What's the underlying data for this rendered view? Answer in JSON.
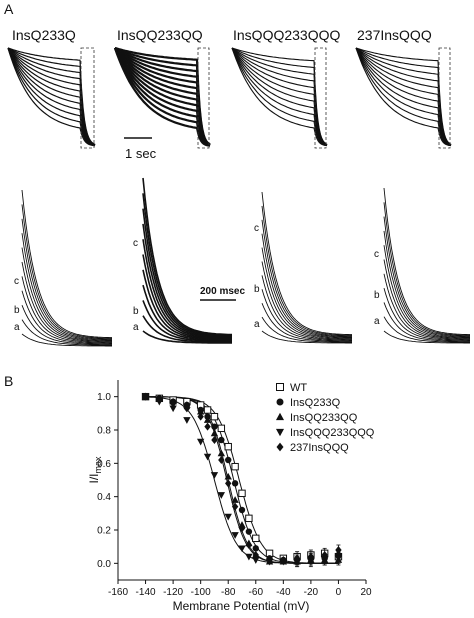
{
  "figure": {
    "panel_a_label": "A",
    "panel_b_label": "B",
    "panels_a": [
      {
        "title": "InsQ233Q"
      },
      {
        "title": "InsQQ233QQ"
      },
      {
        "title": "InsQQQ233QQQ"
      },
      {
        "title": "237InsQQQ"
      }
    ],
    "scalebar_top": "1 sec",
    "scalebar_bottom": "200 msec",
    "trace_labels": [
      "c",
      "b",
      "a"
    ]
  },
  "chart_data": {
    "type": "scatter",
    "xlabel": "Membrane Potential (mV)",
    "ylabel_main": "I/I",
    "ylabel_sub": "max",
    "xlim": [
      -160,
      20
    ],
    "ylim": [
      -0.1,
      1.1
    ],
    "xticks": [
      -160,
      -140,
      -120,
      -100,
      -80,
      -60,
      -40,
      -20,
      0,
      20
    ],
    "yticks": [
      0.0,
      0.2,
      0.4,
      0.6,
      0.8,
      1.0
    ],
    "xtick_labels": [
      "-160",
      "-140",
      "-120",
      "-100",
      "-80",
      "-60",
      "-40",
      "-20",
      "0",
      "20"
    ],
    "ytick_labels": [
      "0.0",
      "0.2",
      "0.4",
      "0.6",
      "0.8",
      "1.0"
    ],
    "legend_position": "top-right",
    "series": [
      {
        "name": "WT",
        "marker": "square-open",
        "x": [
          -140,
          -130,
          -120,
          -110,
          -100,
          -95,
          -90,
          -85,
          -80,
          -75,
          -70,
          -65,
          -60,
          -50,
          -40,
          -30,
          -20,
          -10,
          0
        ],
        "y": [
          1.0,
          0.99,
          0.98,
          0.97,
          0.95,
          0.92,
          0.88,
          0.81,
          0.7,
          0.58,
          0.42,
          0.27,
          0.15,
          0.06,
          0.03,
          0.04,
          0.05,
          0.06,
          0.04
        ]
      },
      {
        "name": "InsQ233Q",
        "marker": "circle-filled",
        "x": [
          -140,
          -130,
          -120,
          -110,
          -100,
          -95,
          -90,
          -85,
          -80,
          -75,
          -70,
          -65,
          -60,
          -50,
          -40,
          -30,
          -20,
          -10,
          0
        ],
        "y": [
          1.0,
          0.99,
          0.97,
          0.95,
          0.92,
          0.88,
          0.82,
          0.74,
          0.62,
          0.48,
          0.32,
          0.19,
          0.09,
          0.03,
          0.02,
          0.02,
          0.03,
          0.03,
          0.05
        ]
      },
      {
        "name": "InsQQ233QQ",
        "marker": "triangle-up",
        "x": [
          -140,
          -130,
          -120,
          -110,
          -100,
          -95,
          -90,
          -85,
          -80,
          -75,
          -70,
          -65,
          -60,
          -50,
          -40,
          -30,
          -20,
          -10,
          0
        ],
        "y": [
          1.0,
          0.99,
          0.97,
          0.95,
          0.91,
          0.86,
          0.78,
          0.66,
          0.52,
          0.38,
          0.23,
          0.12,
          0.05,
          0.01,
          0.01,
          0.01,
          0.02,
          0.02,
          0.02
        ]
      },
      {
        "name": "InsQQQ233QQQ",
        "marker": "triangle-down",
        "x": [
          -140,
          -130,
          -120,
          -110,
          -100,
          -95,
          -90,
          -85,
          -80,
          -75,
          -70,
          -65,
          -60,
          -50,
          -40,
          -30,
          -20,
          -10,
          0
        ],
        "y": [
          1.0,
          0.97,
          0.93,
          0.86,
          0.73,
          0.64,
          0.53,
          0.41,
          0.28,
          0.17,
          0.09,
          0.04,
          0.02,
          0.01,
          0.01,
          0.01,
          0.01,
          0.02,
          0.03
        ]
      },
      {
        "name": "237InsQQQ",
        "marker": "diamond-filled",
        "x": [
          -140,
          -130,
          -120,
          -110,
          -100,
          -95,
          -90,
          -85,
          -80,
          -75,
          -70,
          -65,
          -60,
          -50,
          -40,
          -30,
          -20,
          -10,
          0
        ],
        "y": [
          1.0,
          0.98,
          0.96,
          0.93,
          0.88,
          0.82,
          0.74,
          0.62,
          0.48,
          0.34,
          0.21,
          0.11,
          0.05,
          0.02,
          0.02,
          0.03,
          0.04,
          0.05,
          0.08
        ]
      }
    ],
    "fit_v_half": [
      -72,
      -76,
      -80,
      -90,
      -81
    ],
    "fit_slope": [
      8,
      7.5,
      7,
      8,
      7
    ]
  }
}
